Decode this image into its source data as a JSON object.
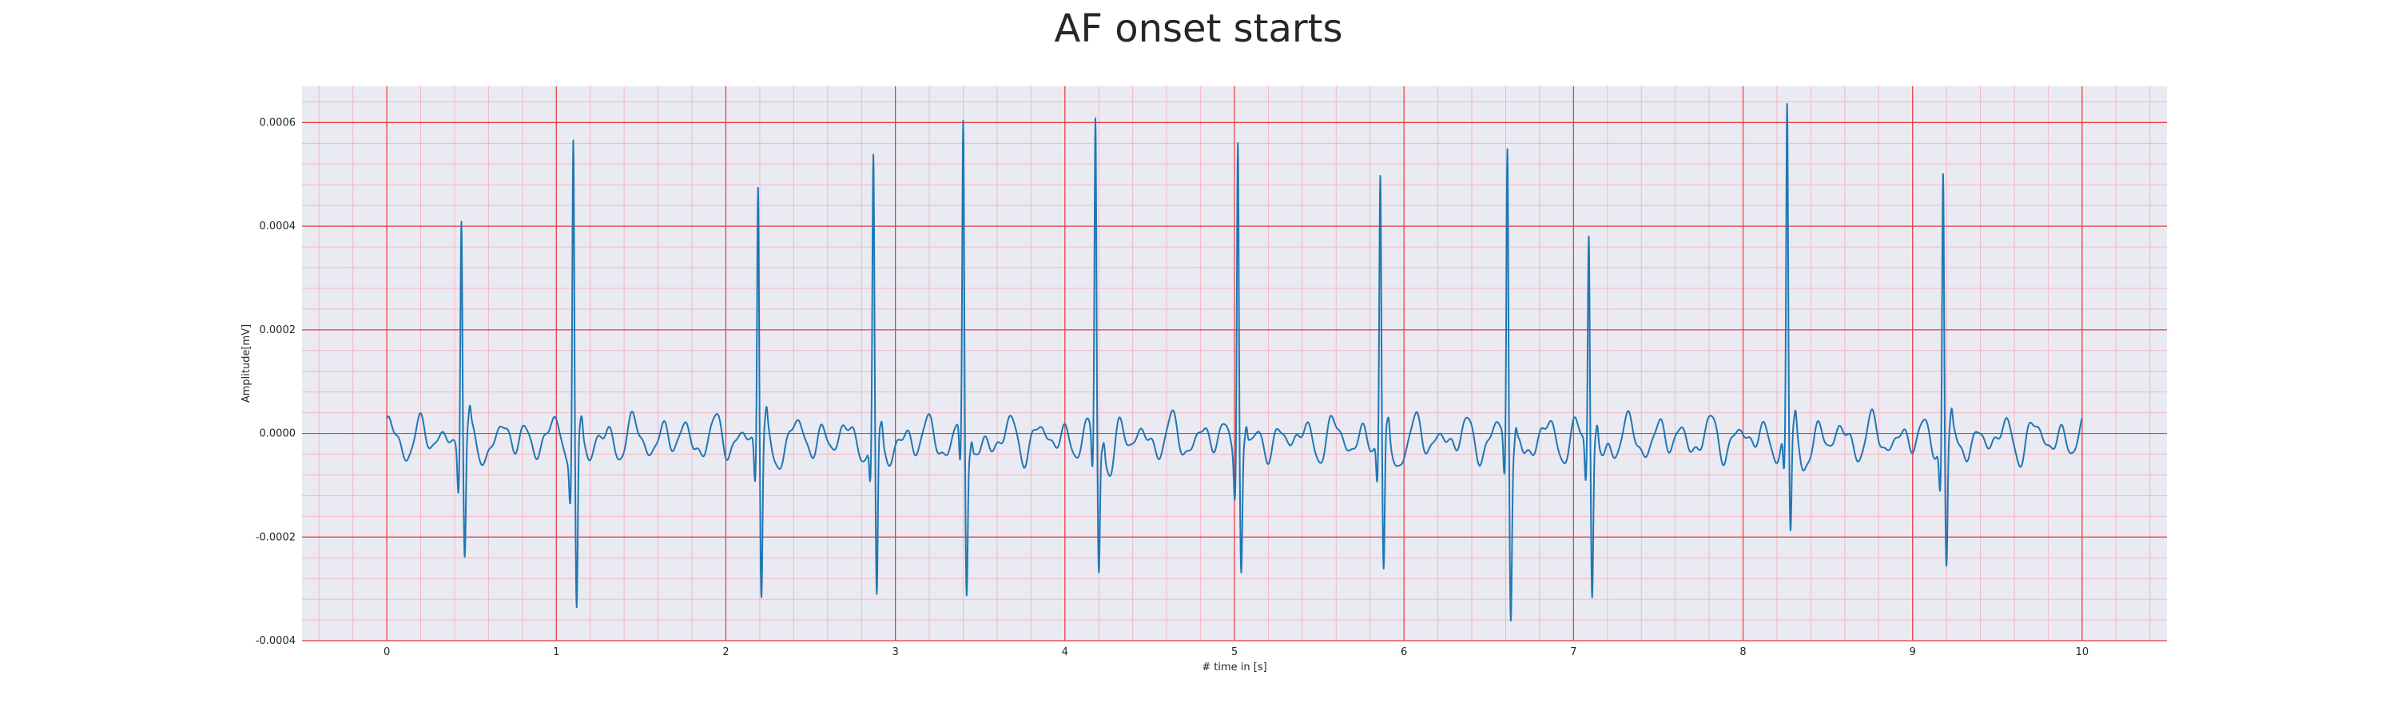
{
  "chart_data": {
    "type": "line",
    "title": "AF onset starts",
    "xlabel": "# time in [s]",
    "ylabel": "Amplitude[mV]",
    "xlim": [
      -0.5,
      10.5
    ],
    "ylim": [
      -0.0004,
      0.00067
    ],
    "x_ticks": [
      0,
      1,
      2,
      3,
      4,
      5,
      6,
      7,
      8,
      9,
      10
    ],
    "x_tick_labels": [
      "0",
      "1",
      "2",
      "3",
      "4",
      "5",
      "6",
      "7",
      "8",
      "9",
      "10"
    ],
    "y_ticks": [
      -0.0004,
      -0.0002,
      0.0,
      0.0002,
      0.0004,
      0.0006
    ],
    "y_tick_labels": [
      "-0.0004",
      "-0.0002",
      "0.0000",
      "0.0002",
      "0.0004",
      "0.0006"
    ],
    "grid": "major red, minor pink",
    "series": [
      {
        "color": "#1f77b4",
        "beats": [
          {
            "t": 0.44,
            "peak": 0.00045,
            "trough": -0.00023
          },
          {
            "t": 1.1,
            "peak": 0.000595,
            "trough": -0.00035
          },
          {
            "t": 2.19,
            "peak": 0.000505,
            "trough": -0.000305
          },
          {
            "t": 2.87,
            "peak": 0.000515,
            "trough": -0.00035
          },
          {
            "t": 3.4,
            "peak": 0.000585,
            "trough": -0.0003
          },
          {
            "t": 4.18,
            "peak": 0.0006,
            "trough": -0.000265
          },
          {
            "t": 5.02,
            "peak": 0.00061,
            "trough": -0.000245
          },
          {
            "t": 5.86,
            "peak": 0.000495,
            "trough": -0.00029
          },
          {
            "t": 6.61,
            "peak": 0.00057,
            "trough": -0.00032
          },
          {
            "t": 7.09,
            "peak": 0.000405,
            "trough": -0.0003
          },
          {
            "t": 8.26,
            "peak": 0.00062,
            "trough": -0.000205
          },
          {
            "t": 9.18,
            "peak": 0.000535,
            "trough": -0.00024
          }
        ],
        "baseline_noise_amplitude": 5e-05,
        "x_start": 0.0,
        "x_end": 10.0
      }
    ]
  }
}
